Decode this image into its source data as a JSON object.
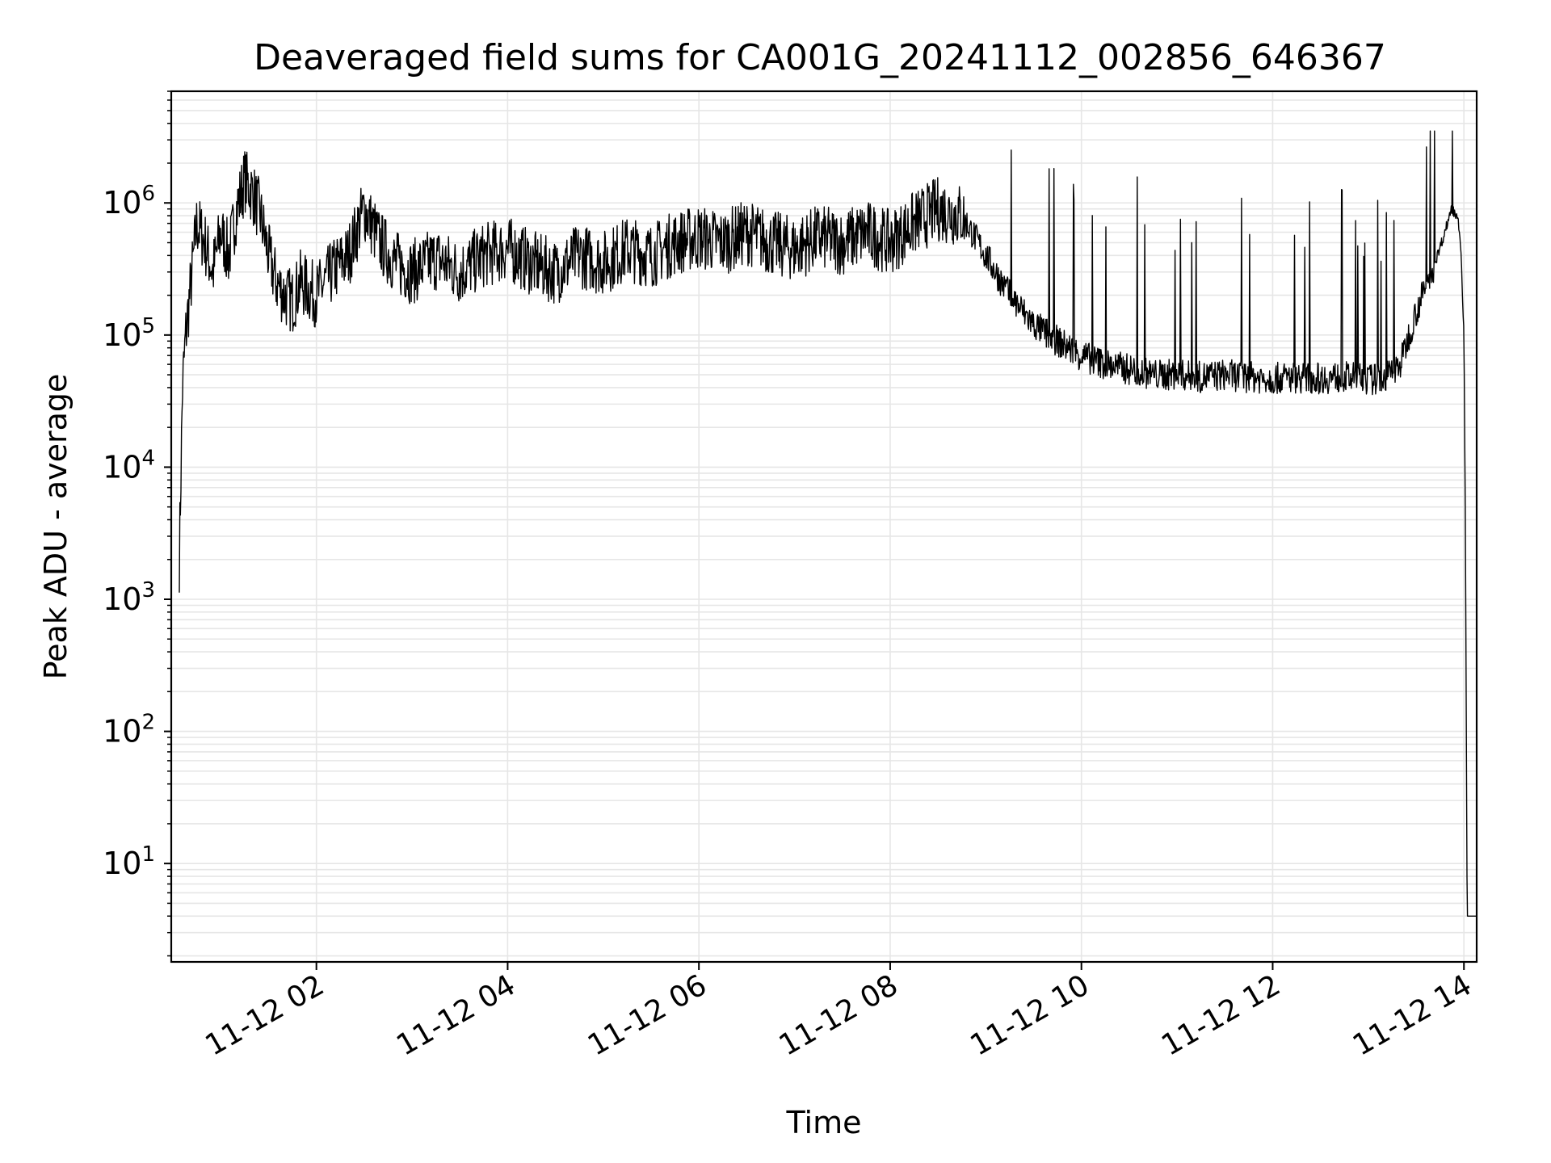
{
  "chart_data": {
    "type": "line",
    "title": "Deaveraged field sums for CA001G_20241112_002856_646367",
    "xlabel": "Time",
    "ylabel": "Peak ADU - average",
    "yscale": "log",
    "ylim": [
      1.8,
      7000000
    ],
    "xlim": [
      "2024-11-12T00:28:56",
      "2024-11-12T14:08:00"
    ],
    "grid": true,
    "legend": "none",
    "line_color": "#000000",
    "x_ticks": [
      "11-12 02",
      "11-12 04",
      "11-12 06",
      "11-12 08",
      "11-12 10",
      "11-12 12",
      "11-12 14"
    ],
    "x_tick_values": [
      "2024-11-12T02:00",
      "2024-11-12T04:00",
      "2024-11-12T06:00",
      "2024-11-12T08:00",
      "2024-11-12T10:00",
      "2024-11-12T12:00",
      "2024-11-12T14:00"
    ],
    "y_ticks": [
      {
        "base": "10",
        "exp": "1",
        "value": 10
      },
      {
        "base": "10",
        "exp": "2",
        "value": 100
      },
      {
        "base": "10",
        "exp": "3",
        "value": 1000
      },
      {
        "base": "10",
        "exp": "4",
        "value": 10000
      },
      {
        "base": "10",
        "exp": "5",
        "value": 100000
      },
      {
        "base": "10",
        "exp": "6",
        "value": 1000000
      }
    ],
    "series": [
      {
        "x": [
          "2024-11-12T00:34",
          "2024-11-12T00:36",
          "2024-11-12T00:38",
          "2024-11-12T00:42",
          "2024-11-12T00:45",
          "2024-11-12T00:50",
          "2024-11-12T00:55",
          "2024-11-12T01:00",
          "2024-11-12T01:05",
          "2024-11-12T01:10",
          "2024-11-12T01:15",
          "2024-11-12T01:20",
          "2024-11-12T01:25",
          "2024-11-12T01:30",
          "2024-11-12T01:35",
          "2024-11-12T01:40",
          "2024-11-12T01:45",
          "2024-11-12T01:50",
          "2024-11-12T01:55",
          "2024-11-12T02:00",
          "2024-11-12T02:10",
          "2024-11-12T02:20",
          "2024-11-12T02:30",
          "2024-11-12T02:40",
          "2024-11-12T02:50",
          "2024-11-12T03:00",
          "2024-11-12T03:15",
          "2024-11-12T03:30",
          "2024-11-12T03:45",
          "2024-11-12T04:00",
          "2024-11-12T04:15",
          "2024-11-12T04:30",
          "2024-11-12T04:45",
          "2024-11-12T05:00",
          "2024-11-12T05:15",
          "2024-11-12T05:30",
          "2024-11-12T05:45",
          "2024-11-12T06:00",
          "2024-11-12T06:15",
          "2024-11-12T06:30",
          "2024-11-12T06:45",
          "2024-11-12T07:00",
          "2024-11-12T07:15",
          "2024-11-12T07:30",
          "2024-11-12T07:45",
          "2024-11-12T08:00",
          "2024-11-12T08:15",
          "2024-11-12T08:30",
          "2024-11-12T08:45",
          "2024-11-12T09:00",
          "2024-11-12T09:15",
          "2024-11-12T09:30",
          "2024-11-12T09:45",
          "2024-11-12T10:00",
          "2024-11-12T10:15",
          "2024-11-12T10:30",
          "2024-11-12T10:45",
          "2024-11-12T11:00",
          "2024-11-12T11:15",
          "2024-11-12T11:30",
          "2024-11-12T11:45",
          "2024-11-12T12:00",
          "2024-11-12T12:15",
          "2024-11-12T12:30",
          "2024-11-12T12:45",
          "2024-11-12T13:00",
          "2024-11-12T13:10",
          "2024-11-12T13:20",
          "2024-11-12T13:30",
          "2024-11-12T13:40",
          "2024-11-12T13:48",
          "2024-11-12T13:52",
          "2024-11-12T13:56",
          "2024-11-12T13:58",
          "2024-11-12T14:00",
          "2024-11-12T14:01",
          "2024-11-12T14:02",
          "2024-11-12T14:08"
        ],
        "y": [
          2000,
          40000,
          100000,
          300000,
          700000,
          500000,
          300000,
          600000,
          400000,
          900000,
          1500000,
          1200000,
          800000,
          400000,
          250000,
          200000,
          180000,
          250000,
          220000,
          200000,
          300000,
          400000,
          900000,
          500000,
          350000,
          300000,
          380000,
          300000,
          400000,
          450000,
          350000,
          300000,
          400000,
          350000,
          450000,
          400000,
          500000,
          550000,
          500000,
          600000,
          500000,
          450000,
          550000,
          500000,
          600000,
          500000,
          700000,
          900000,
          800000,
          400000,
          200000,
          120000,
          90000,
          70000,
          60000,
          55000,
          50000,
          50000,
          48000,
          50000,
          48000,
          47000,
          48000,
          47000,
          48000,
          46000,
          47000,
          60000,
          150000,
          300000,
          600000,
          900000,
          800000,
          500000,
          100000,
          3000,
          4,
          4
        ]
      }
    ],
    "noise": {
      "description_free": true,
      "y_low_high_by_segment": []
    }
  }
}
